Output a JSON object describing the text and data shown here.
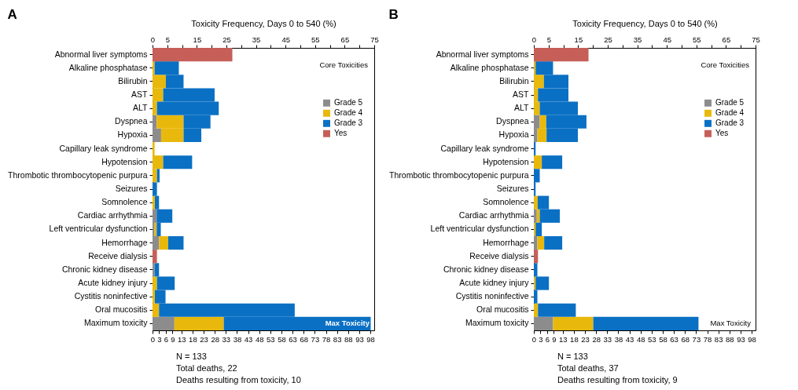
{
  "chart_data": [
    {
      "type": "bar",
      "orientation": "horizontal",
      "stacked": true,
      "title": "A",
      "x2label": "Toxicity Frequency, Days 0 to 540 (%)",
      "legend": "right",
      "grid": false,
      "categories": [
        "Abnormal liver symptoms",
        "Alkaline phosphatase",
        "Bilirubin",
        "AST",
        "ALT",
        "Dyspnea",
        "Hypoxia",
        "Capillary leak syndrome",
        "Hypotension",
        "Thrombotic thrombocytopenic purpura",
        "Seizures",
        "Somnolence",
        "Cardiac arrhythmia",
        "Left ventricular dysfunction",
        "Hemorrhage",
        "Receive dialysis",
        "Chronic kidney disease",
        "Acute kidney injury",
        "Cystitis noninfective",
        "Oral mucositis",
        "Maximum toxicity"
      ],
      "series": [
        {
          "name": "Grade 5",
          "color": "#8c8c8c",
          "axis": "x2",
          "values": [
            null,
            null,
            null,
            null,
            null,
            1.4,
            2.9,
            null,
            null,
            null,
            null,
            null,
            1.4,
            0.7,
            2.2,
            null,
            0.7,
            null,
            null,
            null,
            7.4
          ]
        },
        {
          "name": "Grade 4",
          "color": "#e8b90c",
          "axis": "x2",
          "values": [
            null,
            0.7,
            4.5,
            3.6,
            1.5,
            9.1,
            7.6,
            0.7,
            3.6,
            1.5,
            null,
            0.8,
            null,
            0.7,
            3.1,
            null,
            null,
            1.5,
            0.8,
            2.2,
            16.7
          ]
        },
        {
          "name": "Grade 3",
          "color": "#0a70c4",
          "axis": "x2",
          "values": [
            null,
            8.2,
            6.0,
            17.4,
            20.9,
            9.1,
            6.0,
            null,
            9.8,
            0.9,
            1.5,
            1.4,
            5.3,
            1.4,
            5.2,
            null,
            1.5,
            6.0,
            3.6,
            45.9,
            49.7
          ]
        },
        {
          "name": "Yes",
          "color": "#c55f58",
          "axis": "x2",
          "values": [
            27.0,
            null,
            null,
            null,
            null,
            null,
            null,
            null,
            null,
            null,
            null,
            null,
            null,
            null,
            null,
            1.5,
            null,
            null,
            null,
            null,
            null
          ]
        }
      ],
      "x2lim": [
        0,
        75
      ],
      "x2ticks": [
        0,
        5,
        {
          "value": 10,
          "label": null
        },
        15,
        {
          "value": 20,
          "label": null
        },
        25,
        {
          "value": 30,
          "label": null
        },
        35,
        {
          "value": 40,
          "label": null
        },
        45,
        {
          "value": 50,
          "label": null
        },
        55,
        {
          "value": 60,
          "label": null
        },
        65,
        {
          "value": 70,
          "label": null
        },
        75
      ],
      "xlim": [
        0,
        99.75
      ],
      "xticks": [
        0,
        3,
        6,
        9,
        13,
        18,
        23,
        28,
        33,
        38,
        43,
        48,
        53,
        58,
        63,
        68,
        73,
        78,
        83,
        88,
        93,
        98
      ],
      "annotations": [
        "Core Toxicities",
        "Max Toxicity",
        "N = 133",
        "Total deaths, 22",
        "Deaths resulting from toxicity, 10"
      ]
    },
    {
      "type": "bar",
      "orientation": "horizontal",
      "stacked": true,
      "title": "B",
      "x2label": "Toxicity Frequency, Days 0 to 540 (%)",
      "legend": "right",
      "grid": false,
      "categories": [
        "Abnormal liver symptoms",
        "Alkaline phosphatase",
        "Bilirubin",
        "AST",
        "ALT",
        "Dyspnea",
        "Hypoxia",
        "Capillary leak syndrome",
        "Hypotension",
        "Thrombotic thrombocytopenic purpura",
        "Seizures",
        "Somnolence",
        "Cardiac arrhythmia",
        "Left ventricular dysfunction",
        "Hemorrhage",
        "Receive dialysis",
        "Chronic kidney disease",
        "Acute kidney injury",
        "Cystitis noninfective",
        "Oral mucositis",
        "Maximum toxicity"
      ],
      "series": [
        {
          "name": "Grade 5",
          "color": "#8c8c8c",
          "axis": "x2",
          "values": [
            null,
            null,
            null,
            null,
            null,
            2.0,
            1.2,
            null,
            null,
            null,
            null,
            null,
            1.0,
            null,
            1.2,
            null,
            null,
            null,
            null,
            null,
            6.5
          ]
        },
        {
          "name": "Grade 4",
          "color": "#e8b90c",
          "axis": "x2",
          "values": [
            null,
            0.6,
            3.4,
            1.4,
            2.0,
            2.2,
            3.1,
            null,
            2.7,
            null,
            null,
            1.3,
            1.0,
            0.6,
            2.3,
            null,
            null,
            0.6,
            null,
            1.4,
            13.6
          ]
        },
        {
          "name": "Grade 3",
          "color": "#0a70c4",
          "axis": "x2",
          "values": [
            null,
            5.9,
            8.3,
            10.3,
            12.9,
            13.6,
            10.6,
            0.6,
            6.9,
            2.0,
            0.6,
            3.8,
            6.8,
            2.1,
            6.1,
            null,
            1.2,
            4.5,
            1.2,
            12.8,
            35.6
          ]
        },
        {
          "name": "Yes",
          "color": "#c55f58",
          "axis": "x2",
          "values": [
            18.5,
            null,
            null,
            null,
            null,
            null,
            null,
            null,
            null,
            null,
            null,
            null,
            null,
            null,
            null,
            1.4,
            null,
            null,
            null,
            null,
            null
          ]
        }
      ],
      "x2lim": [
        0,
        75
      ],
      "x2ticks": [
        0,
        5,
        {
          "value": 10,
          "label": null
        },
        15,
        {
          "value": 20,
          "label": null
        },
        25,
        {
          "value": 30,
          "label": null
        },
        35,
        {
          "value": 40,
          "label": null
        },
        45,
        {
          "value": 50,
          "label": null
        },
        55,
        {
          "value": 60,
          "label": null
        },
        65,
        {
          "value": 70,
          "label": null
        },
        75
      ],
      "xlim": [
        0,
        99.75
      ],
      "xticks": [
        0,
        3,
        6,
        9,
        13,
        18,
        23,
        28,
        33,
        38,
        43,
        48,
        53,
        58,
        63,
        68,
        73,
        78,
        83,
        88,
        93,
        98
      ],
      "annotations": [
        "Core Toxicities",
        "Max Toxicity",
        "N = 133",
        "Total deaths, 37",
        "Deaths resulting from toxicity, 9"
      ]
    }
  ]
}
